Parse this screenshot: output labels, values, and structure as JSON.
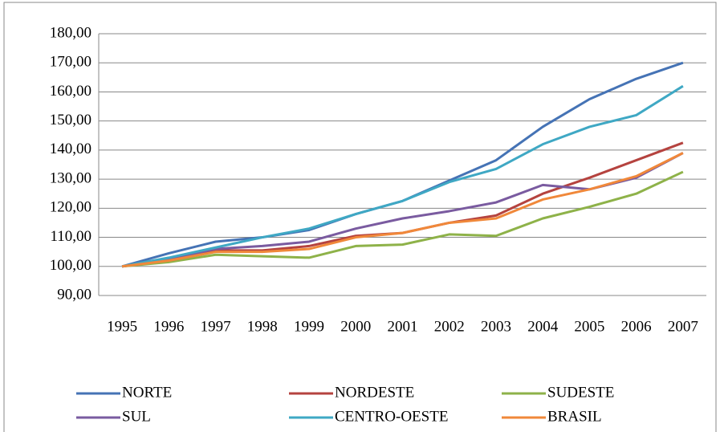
{
  "chart_data": {
    "type": "line",
    "categories": [
      "1995",
      "1996",
      "1997",
      "1998",
      "1999",
      "2000",
      "2001",
      "2002",
      "2003",
      "2004",
      "2005",
      "2006",
      "2007"
    ],
    "series": [
      {
        "name": "NORTE",
        "color": "#4573b5",
        "values": [
          100,
          104.5,
          108.5,
          110,
          112.5,
          118,
          122.5,
          129.5,
          136.5,
          148,
          157.5,
          164.5,
          170
        ]
      },
      {
        "name": "NORDESTE",
        "color": "#b5433f",
        "values": [
          100,
          102,
          105.5,
          105.5,
          107,
          110.5,
          111.5,
          115,
          117.5,
          125,
          130.5,
          136.5,
          142.5
        ]
      },
      {
        "name": "SUDESTE",
        "color": "#8eb249",
        "values": [
          100,
          101.5,
          104,
          103.5,
          103,
          107,
          107.5,
          111,
          110.5,
          116.5,
          120.5,
          125,
          132.5
        ]
      },
      {
        "name": "SUL",
        "color": "#7a5ba0",
        "values": [
          100,
          102.5,
          106,
          107,
          108.5,
          113,
          116.5,
          119,
          122,
          128,
          126.5,
          130.5,
          139
        ]
      },
      {
        "name": "CENTRO-OESTE",
        "color": "#3fa8c4",
        "values": [
          100,
          103,
          106.5,
          110,
          113,
          118,
          122.5,
          129,
          133.5,
          142,
          148,
          152,
          162
        ]
      },
      {
        "name": "BRASIL",
        "color": "#f0883a",
        "values": [
          100,
          102,
          105,
          105,
          106,
          110,
          111.5,
          115,
          116.5,
          123,
          126.5,
          131,
          139
        ]
      }
    ],
    "ylim": [
      90,
      180
    ],
    "yticks": [
      {
        "value": 90,
        "label": "90,00"
      },
      {
        "value": 100,
        "label": "100,00"
      },
      {
        "value": 110,
        "label": "110,00"
      },
      {
        "value": 120,
        "label": "120,00"
      },
      {
        "value": 130,
        "label": "130,00"
      },
      {
        "value": 140,
        "label": "140,00"
      },
      {
        "value": 150,
        "label": "150,00"
      },
      {
        "value": 160,
        "label": "160,00"
      },
      {
        "value": 170,
        "label": "170,00"
      },
      {
        "value": 180,
        "label": "180,00"
      }
    ],
    "grid": true,
    "legend": "bottom"
  }
}
